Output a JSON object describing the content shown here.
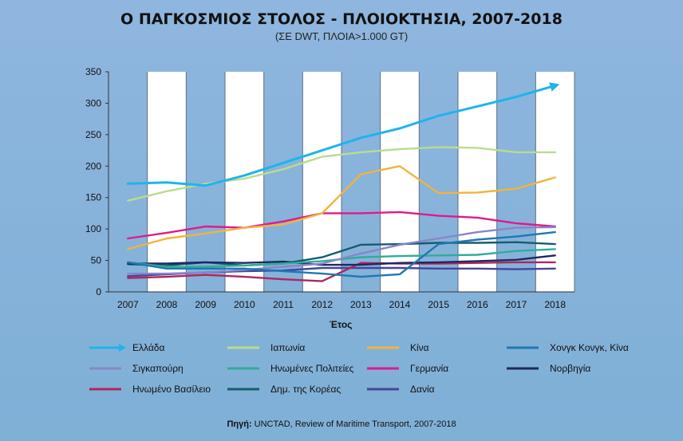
{
  "chart_data": {
    "type": "line",
    "title": "Ο ΠΑΓΚΟΣΜΙΟΣ ΣΤΟΛΟΣ - ΠΛΟΙΟΚΤΗΣΙΑ, 2007-2018",
    "subtitle": "(ΣΕ DWT, ΠΛΟΙΑ>1.000 GT)",
    "xlabel": "Έτος",
    "ylabel": "",
    "x": [
      "2007",
      "2008",
      "2009",
      "2010",
      "2011",
      "2012",
      "2013",
      "2014",
      "2015",
      "2016",
      "2017",
      "2018"
    ],
    "ylim": [
      0,
      350
    ],
    "yticks": [
      0,
      50,
      100,
      150,
      200,
      250,
      300,
      350
    ],
    "grid": "alternating vertical bands",
    "legend_position": "bottom",
    "source_label": "Πηγή:",
    "source_text": "UNCTAD, Review of Maritime Transport, 2007-2018",
    "series": [
      {
        "name": "Ελλάδα",
        "color": "#1fb4ea",
        "arrow": true,
        "values": [
          172,
          174,
          169,
          185,
          205,
          225,
          245,
          260,
          280,
          295,
          310,
          328
        ]
      },
      {
        "name": "Ιαπωνία",
        "color": "#b9dc8e",
        "values": [
          145,
          160,
          172,
          180,
          195,
          215,
          222,
          227,
          230,
          229,
          222,
          222
        ]
      },
      {
        "name": "Κίνα",
        "color": "#f1b43c",
        "values": [
          68,
          85,
          93,
          102,
          107,
          125,
          187,
          200,
          157,
          158,
          164,
          182
        ]
      },
      {
        "name": "Χονγκ Κονγκ, Κίνα",
        "color": "#1e78b4",
        "values": [
          47,
          37,
          37,
          37,
          33,
          29,
          24,
          28,
          76,
          83,
          88,
          95
        ]
      },
      {
        "name": "Σιγκαπούρη",
        "color": "#8a85c8",
        "values": [
          29,
          29,
          31,
          35,
          40,
          45,
          61,
          75,
          85,
          95,
          102,
          103
        ]
      },
      {
        "name": "Ηνωμένες Πολιτείες",
        "color": "#2fad98",
        "values": [
          47,
          40,
          40,
          42,
          45,
          49,
          55,
          57,
          58,
          59,
          65,
          68
        ]
      },
      {
        "name": "Γερμανία",
        "color": "#e01a8c",
        "values": [
          85,
          94,
          104,
          102,
          112,
          125,
          125,
          127,
          121,
          118,
          109,
          104
        ]
      },
      {
        "name": "Νορβηγία",
        "color": "#1e2a60",
        "values": [
          45,
          45,
          47,
          46,
          48,
          43,
          43,
          46,
          47,
          49,
          51,
          58
        ]
      },
      {
        "name": "Ηνωμένο Βασίλειο",
        "color": "#b0265e",
        "values": [
          22,
          24,
          27,
          24,
          20,
          17,
          46,
          45,
          45,
          46,
          47,
          47
        ]
      },
      {
        "name": "Δημ. της Κορέας",
        "color": "#165d6e",
        "values": [
          44,
          42,
          47,
          42,
          45,
          55,
          75,
          76,
          78,
          78,
          79,
          76
        ]
      },
      {
        "name": "Δανία",
        "color": "#45469a",
        "values": [
          25,
          28,
          31,
          33,
          34,
          38,
          38,
          38,
          37,
          37,
          36,
          37
        ]
      }
    ]
  }
}
